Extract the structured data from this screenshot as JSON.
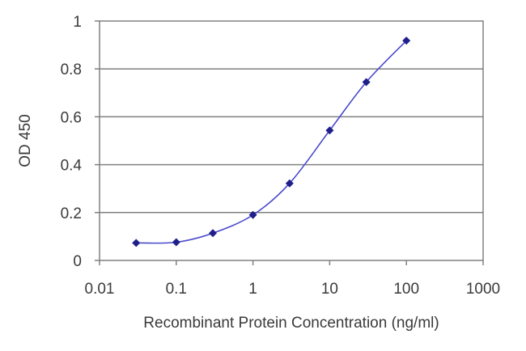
{
  "chart_data": {
    "type": "line",
    "xlabel": "Recombinant Protein Concentration (ng/ml)",
    "ylabel": "OD 450",
    "x_scale": "log",
    "xlim": [
      0.01,
      1000
    ],
    "ylim": [
      0,
      1
    ],
    "x_ticks": [
      "0.01",
      "0.1",
      "1",
      "10",
      "100",
      "1000"
    ],
    "y_ticks": [
      "0",
      "0.2",
      "0.4",
      "0.6",
      "0.8",
      "1"
    ],
    "grid": "horizontal",
    "legend": "none",
    "series": [
      {
        "color": "#1f1f8a",
        "marker": "diamond",
        "x": [
          0.03,
          0.1,
          0.3,
          1,
          3,
          10,
          30,
          100
        ],
        "y": [
          0.073,
          0.076,
          0.114,
          0.19,
          0.322,
          0.543,
          0.745,
          0.918
        ]
      }
    ],
    "colors": {
      "line": "#4a4acd",
      "marker": "#1f1f8a",
      "grid": "#808080",
      "frame": "#808080"
    }
  }
}
